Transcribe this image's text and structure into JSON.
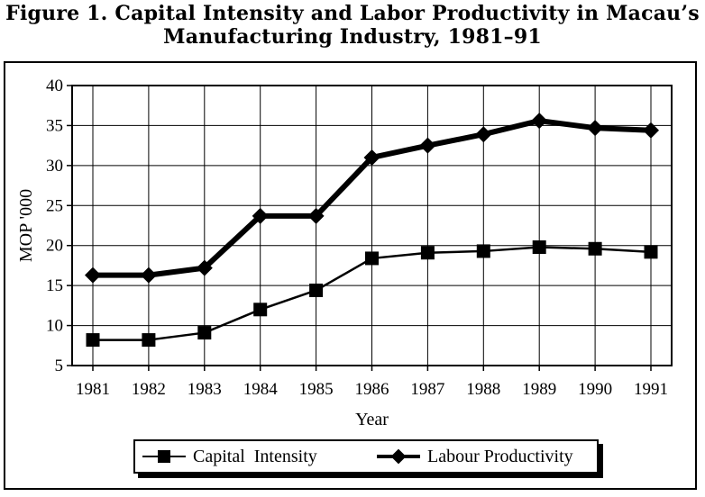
{
  "title_line1": "Figure 1. Capital Intensity and Labor Productivity in Macau’s",
  "title_line2": "Manufacturing Industry, 1981–91",
  "chart_data": {
    "type": "line",
    "x": [
      1981,
      1982,
      1983,
      1984,
      1985,
      1986,
      1987,
      1988,
      1989,
      1990,
      1991
    ],
    "xlabel": "Year",
    "ylabel": "MOP '000",
    "ylim": [
      5,
      40
    ],
    "yticks": [
      5,
      10,
      15,
      20,
      25,
      30,
      35,
      40
    ],
    "grid": true,
    "legend_position": "bottom",
    "series": [
      {
        "name": "Capital  Intensity",
        "marker": "square",
        "line": "thin",
        "values": [
          8.2,
          8.2,
          9.1,
          12.0,
          14.4,
          18.4,
          19.1,
          19.3,
          19.8,
          19.6,
          19.2
        ]
      },
      {
        "name": "Labour Productivity",
        "marker": "diamond",
        "line": "thick",
        "values": [
          16.3,
          16.3,
          17.2,
          23.7,
          23.7,
          31.0,
          32.5,
          33.9,
          35.6,
          34.7,
          34.4
        ]
      }
    ]
  }
}
